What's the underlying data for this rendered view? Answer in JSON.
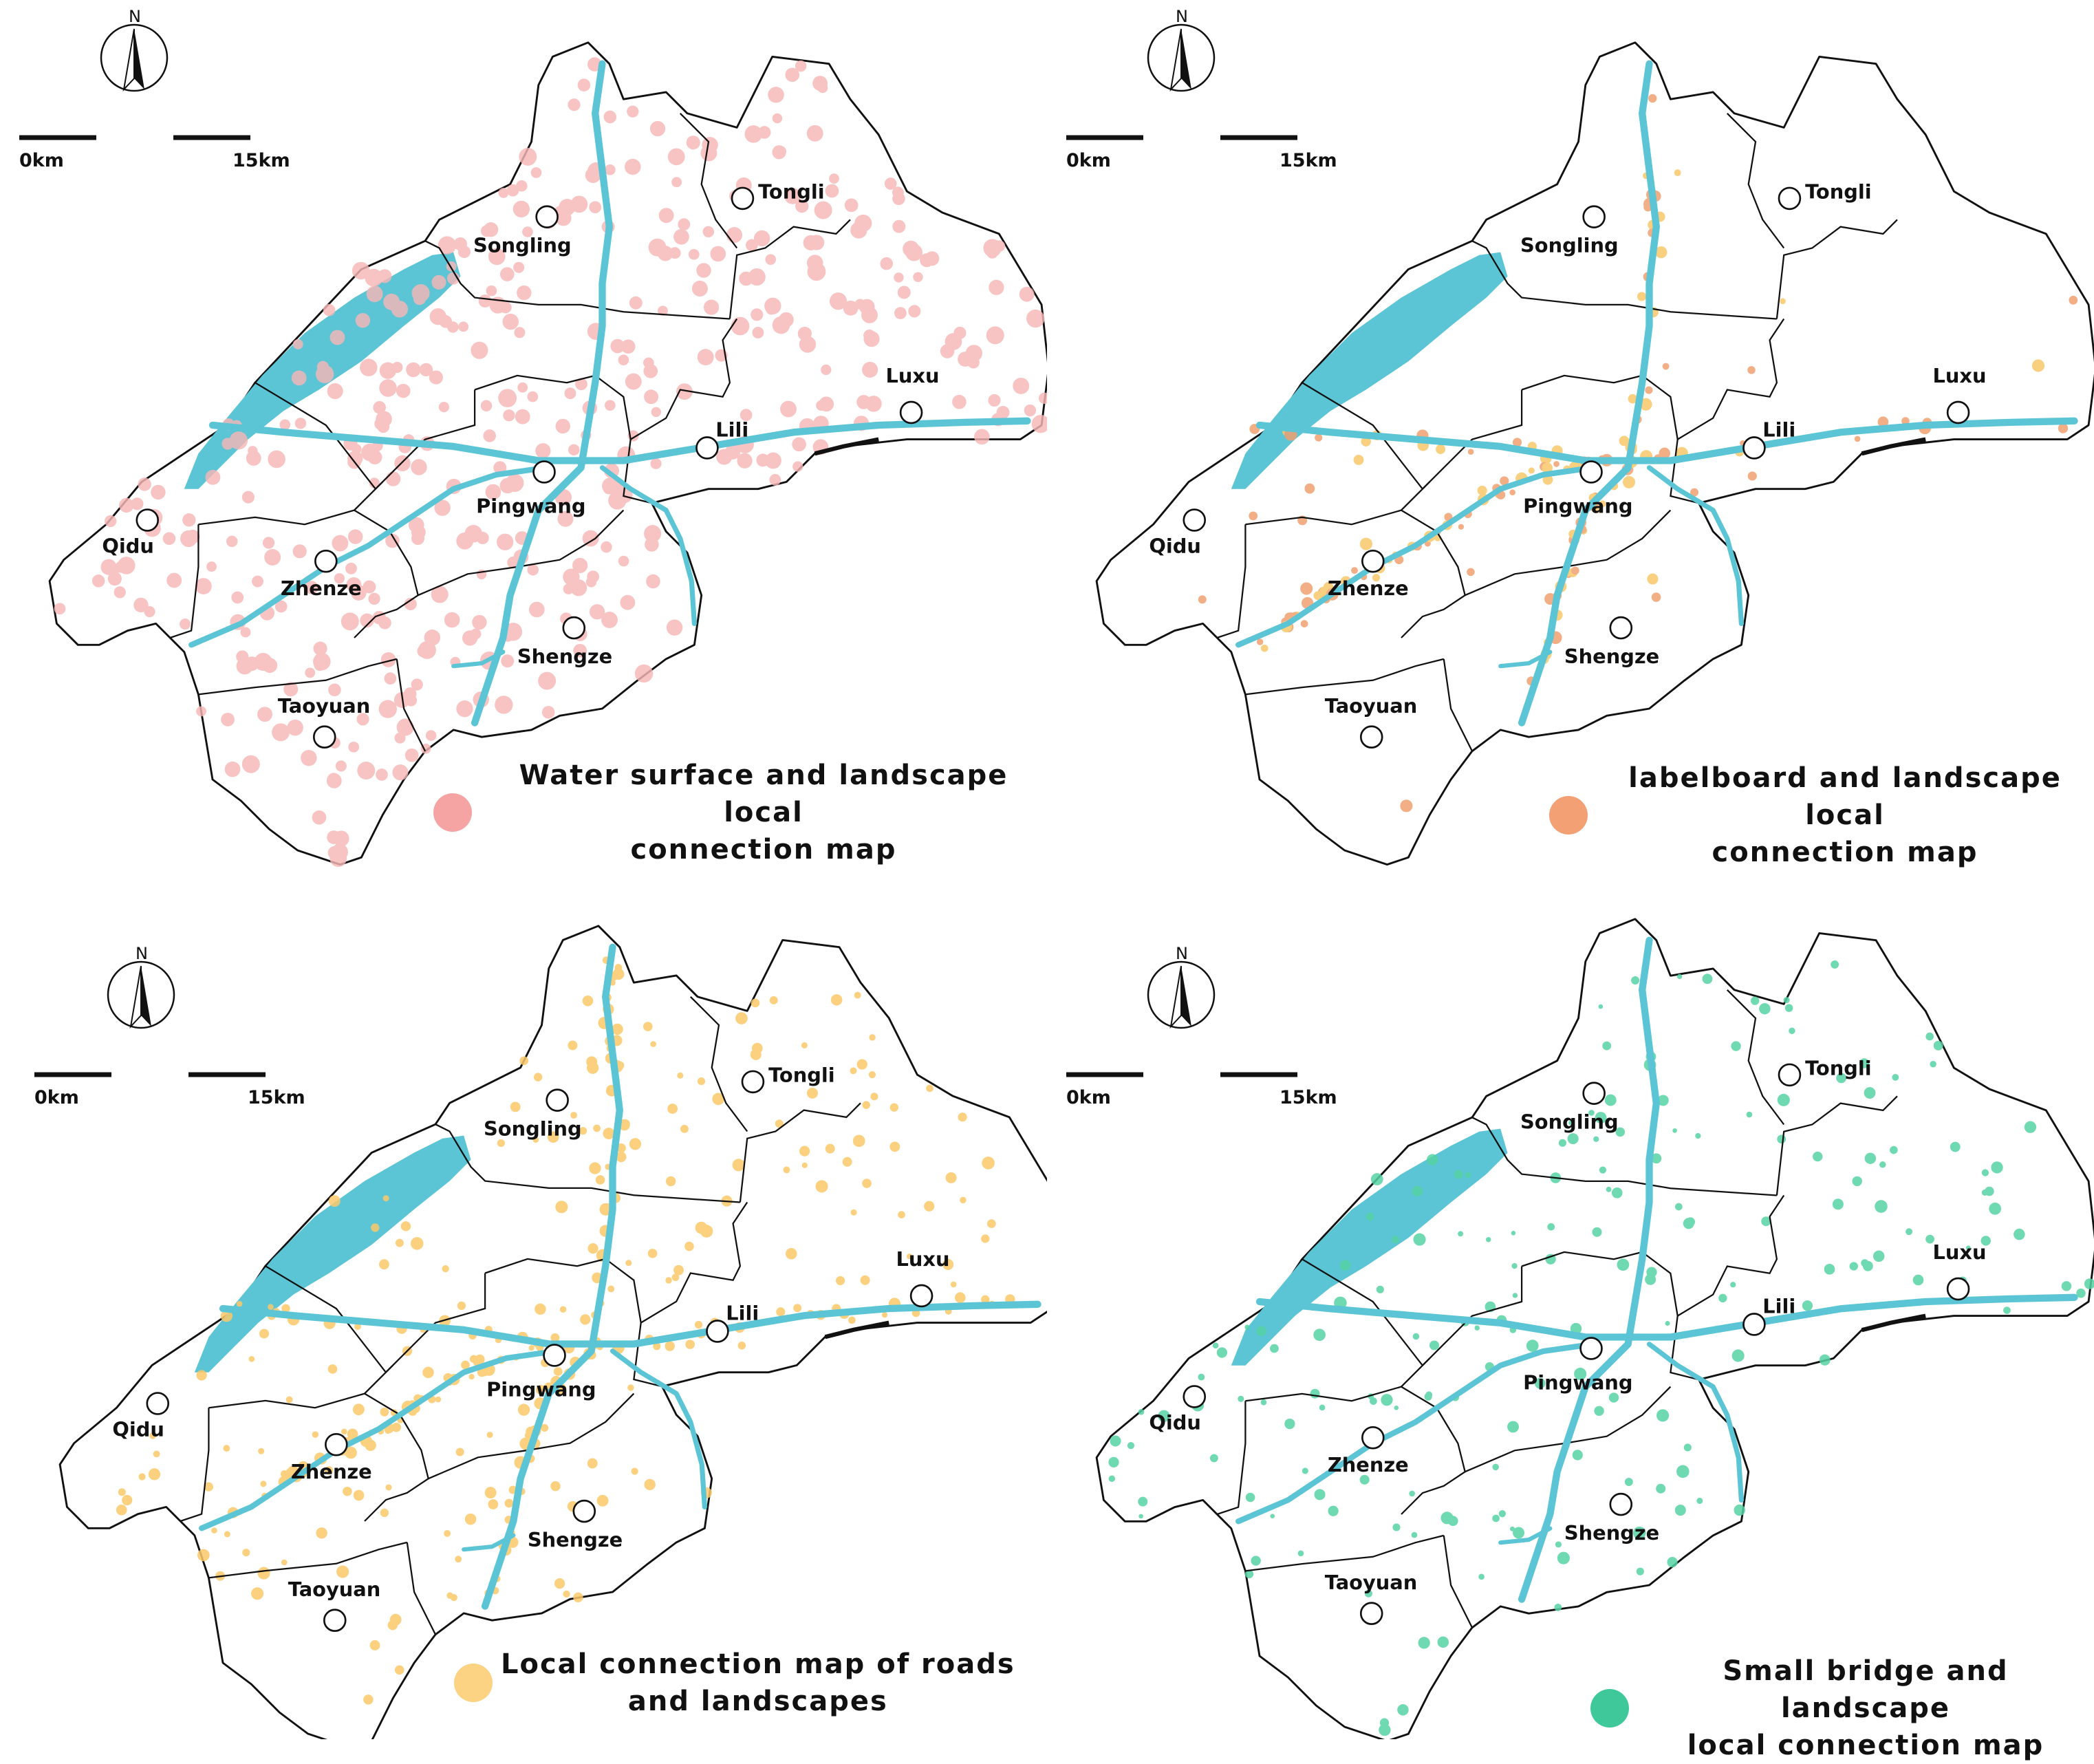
{
  "panels": [
    {
      "id": "water",
      "title_line1": "Water surface and landscape local",
      "title_line2": "connection map",
      "dot_color": "#f5a3a3",
      "point_color": "#f7b7b7",
      "point_count": 420,
      "point_style": "dense"
    },
    {
      "id": "labelboard",
      "title_line1": "labelboard and landscape local",
      "title_line2": "connection map",
      "dot_color": "#f2a074",
      "point_color": "#f0a070",
      "point_color_alt": "#f7c86a",
      "point_count": 160,
      "point_style": "roads"
    },
    {
      "id": "roads",
      "title_line1": "Local connection map of roads",
      "title_line2": "and landscapes",
      "dot_color": "#fcd283",
      "point_color": "#fbc96b",
      "point_count": 330,
      "point_style": "mixed"
    },
    {
      "id": "bridge",
      "title_line1": "Small bridge and landscape",
      "title_line2": "local connection map",
      "dot_color": "#3fc99a",
      "point_color": "#56d3a4",
      "point_count": 190,
      "point_style": "sparse"
    }
  ],
  "towns": [
    "Tongli",
    "Songling",
    "Luxu",
    "Lili",
    "Pingwang",
    "Qidu",
    "Zhenze",
    "Shengze",
    "Taoyuan"
  ],
  "scale": {
    "start_label": "0km",
    "end_label": "15km"
  },
  "north_label": "N",
  "colors": {
    "water": "#5bc5d5",
    "boundary": "#111111",
    "background": "#ffffff"
  }
}
